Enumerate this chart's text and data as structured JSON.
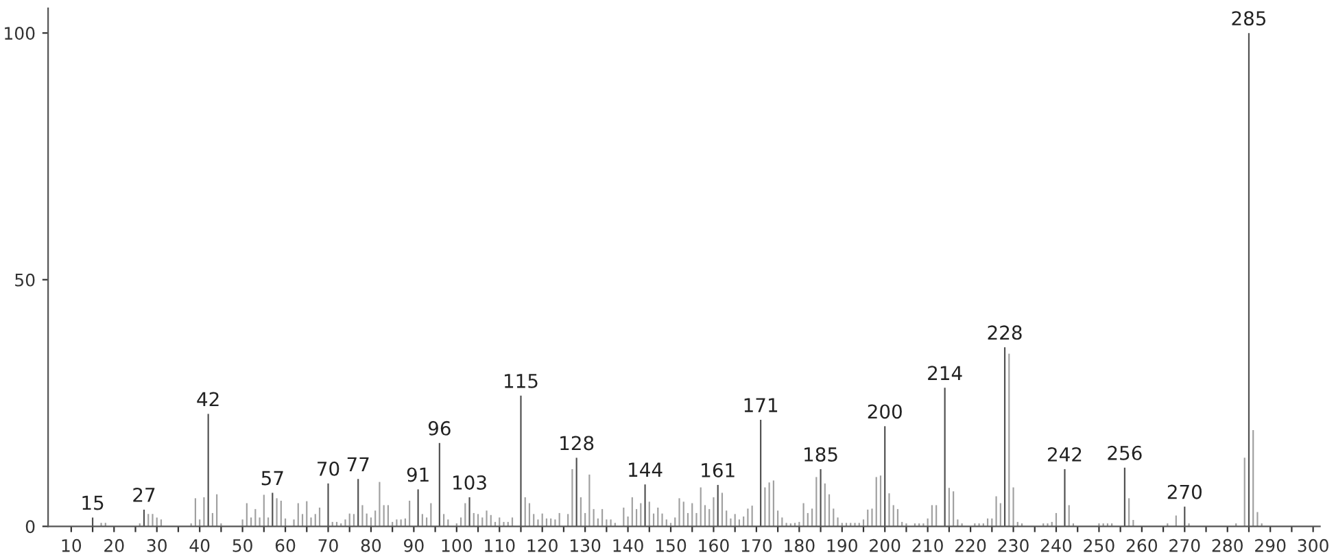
{
  "chart_data": {
    "type": "bar",
    "xlim": [
      4.6,
      301.6
    ],
    "ylim": [
      0,
      105
    ],
    "xticks": [
      10,
      {
        "value": 15,
        "label": null
      },
      20,
      {
        "value": 25,
        "label": null
      },
      30,
      {
        "value": 35,
        "label": null
      },
      40,
      {
        "value": 45,
        "label": null
      },
      50,
      {
        "value": 55,
        "label": null
      },
      60,
      {
        "value": 65,
        "label": null
      },
      70,
      {
        "value": 75,
        "label": null
      },
      80,
      {
        "value": 85,
        "label": null
      },
      90,
      {
        "value": 95,
        "label": null
      },
      100,
      {
        "value": 105,
        "label": null
      },
      110,
      {
        "value": 115,
        "label": null
      },
      120,
      {
        "value": 125,
        "label": null
      },
      130,
      {
        "value": 135,
        "label": null
      },
      140,
      {
        "value": 145,
        "label": null
      },
      150,
      {
        "value": 155,
        "label": null
      },
      160,
      {
        "value": 165,
        "label": null
      },
      170,
      {
        "value": 175,
        "label": null
      },
      180,
      {
        "value": 185,
        "label": null
      },
      190,
      {
        "value": 195,
        "label": null
      },
      200,
      {
        "value": 205,
        "label": null
      },
      210,
      {
        "value": 215,
        "label": null
      },
      220,
      {
        "value": 225,
        "label": null
      },
      230,
      {
        "value": 235,
        "label": null
      },
      240,
      {
        "value": 245,
        "label": null
      },
      250,
      {
        "value": 255,
        "label": null
      },
      260,
      {
        "value": 265,
        "label": null
      },
      270,
      {
        "value": 275,
        "label": null
      },
      280,
      {
        "value": 285,
        "label": null
      },
      290,
      {
        "value": 295,
        "label": null
      },
      300
    ],
    "yticks": [
      0,
      50,
      100
    ],
    "grid": false,
    "series": [
      {
        "color": "#a0a0a0",
        "x": [
          17,
          18,
          26,
          28,
          29,
          30,
          31,
          38,
          39,
          40,
          41,
          43,
          44,
          45,
          50,
          51,
          52,
          53,
          54,
          55,
          56,
          58,
          59,
          60,
          62,
          63,
          64,
          65,
          66,
          67,
          68,
          71,
          72,
          73,
          74,
          75,
          76,
          78,
          79,
          80,
          81,
          82,
          83,
          84,
          85,
          86,
          87,
          88,
          89,
          92,
          93,
          94,
          97,
          98,
          100,
          101,
          102,
          104,
          105,
          106,
          107,
          108,
          109,
          110,
          111,
          112,
          113,
          116,
          117,
          118,
          119,
          120,
          121,
          122,
          123,
          124,
          126,
          127,
          129,
          130,
          131,
          132,
          133,
          134,
          135,
          136,
          137,
          139,
          140,
          141,
          142,
          143,
          145,
          146,
          147,
          148,
          149,
          150,
          151,
          152,
          153,
          154,
          155,
          156,
          157,
          158,
          159,
          160,
          162,
          163,
          164,
          165,
          166,
          167,
          168,
          169,
          172,
          173,
          174,
          175,
          176,
          177,
          178,
          179,
          180,
          181,
          182,
          183,
          184,
          186,
          187,
          188,
          189,
          190,
          191,
          192,
          193,
          194,
          195,
          196,
          197,
          198,
          199,
          201,
          202,
          203,
          204,
          205,
          207,
          208,
          209,
          210,
          211,
          212,
          215,
          216,
          217,
          218,
          221,
          222,
          223,
          224,
          225,
          226,
          227,
          229,
          230,
          231,
          232,
          237,
          238,
          239,
          240,
          243,
          244,
          250,
          251,
          252,
          253,
          257,
          258,
          266,
          268,
          271,
          282,
          284,
          286,
          287,
          288
        ],
        "values": [
          0.7,
          0.7,
          0.6,
          2.5,
          2.5,
          1.8,
          1.4,
          0.6,
          5.7,
          1.4,
          5.9,
          2.7,
          6.5,
          0.6,
          1.4,
          4.7,
          1.8,
          3.5,
          1.8,
          6.4,
          1.8,
          5.7,
          5.2,
          1.6,
          1.4,
          4.7,
          2.5,
          5.1,
          1.8,
          2.5,
          3.8,
          0.9,
          0.9,
          0.6,
          1.4,
          2.6,
          2.5,
          4.3,
          2.6,
          1.8,
          3.2,
          9,
          4.3,
          4.3,
          0.9,
          1.4,
          1.4,
          1.6,
          5.2,
          2.5,
          1.8,
          4.7,
          2.5,
          1.4,
          0.6,
          1.8,
          4.7,
          2.7,
          2.5,
          1.8,
          3.2,
          2.3,
          0.9,
          1.8,
          0.9,
          0.9,
          1.8,
          5.9,
          4.7,
          2.5,
          1.4,
          2.6,
          1.6,
          1.6,
          1.4,
          2.7,
          2.5,
          11.6,
          5.9,
          2.7,
          10.5,
          3.5,
          1.6,
          3.5,
          1.4,
          1.4,
          0.7,
          3.8,
          2,
          5.9,
          3.5,
          4.7,
          5,
          2.6,
          3.8,
          2.6,
          1.4,
          0.7,
          1.8,
          5.7,
          5,
          2.7,
          4.7,
          2.7,
          7.9,
          4.3,
          3.5,
          5.9,
          6.8,
          3.2,
          1.6,
          2.5,
          1.4,
          2,
          3.6,
          4.2,
          7.9,
          8.9,
          9.3,
          3.2,
          1.8,
          0.7,
          0.6,
          0.7,
          0.9,
          4.7,
          2.7,
          3.6,
          10,
          8.7,
          6.5,
          3.6,
          1.8,
          0.7,
          0.7,
          0.7,
          0.7,
          0.7,
          1.4,
          3.4,
          3.6,
          10,
          10.3,
          6.7,
          4.3,
          3.5,
          0.9,
          0.6,
          0.6,
          0.6,
          0.6,
          1.6,
          4.3,
          4.3,
          7.8,
          7.1,
          1.4,
          0.6,
          0.6,
          0.6,
          0.6,
          1.6,
          1.6,
          6.1,
          4.7,
          35,
          7.9,
          0.9,
          0.6,
          0.6,
          0.6,
          0.9,
          2.7,
          4.3,
          0.6,
          0.6,
          0.6,
          0.6,
          0.6,
          5.7,
          1.3,
          0.6,
          2.2,
          0.6,
          0.6,
          13.9,
          19.5,
          2.9,
          0.6
        ]
      },
      {
        "color": "#505050",
        "x": [
          15,
          27,
          42,
          57,
          70,
          77,
          91,
          96,
          103,
          115,
          128,
          144,
          161,
          171,
          185,
          200,
          214,
          228,
          242,
          256,
          270,
          285
        ],
        "values": [
          1.8,
          3.4,
          22.8,
          6.8,
          8.7,
          9.6,
          7.5,
          16.9,
          5.9,
          26.5,
          13.9,
          8.5,
          8.4,
          21.6,
          11.6,
          20.3,
          28.1,
          36.3,
          11.6,
          11.9,
          4.0,
          100
        ]
      }
    ],
    "annotations": [
      {
        "text": "15",
        "x": 15,
        "y": 1.8
      },
      {
        "text": "27",
        "x": 27,
        "y": 3.4
      },
      {
        "text": "42",
        "x": 42,
        "y": 22.8
      },
      {
        "text": "57",
        "x": 57,
        "y": 6.8
      },
      {
        "text": "70",
        "x": 70,
        "y": 8.7
      },
      {
        "text": "77",
        "x": 77,
        "y": 9.6
      },
      {
        "text": "91",
        "x": 91,
        "y": 7.5
      },
      {
        "text": "96",
        "x": 96,
        "y": 16.9
      },
      {
        "text": "103",
        "x": 103,
        "y": 5.9
      },
      {
        "text": "115",
        "x": 115,
        "y": 26.5
      },
      {
        "text": "128",
        "x": 128,
        "y": 13.9
      },
      {
        "text": "144",
        "x": 144,
        "y": 8.5
      },
      {
        "text": "161",
        "x": 161,
        "y": 8.4
      },
      {
        "text": "171",
        "x": 171,
        "y": 21.6
      },
      {
        "text": "185",
        "x": 185,
        "y": 11.6
      },
      {
        "text": "200",
        "x": 200,
        "y": 20.3
      },
      {
        "text": "214",
        "x": 214,
        "y": 28.1
      },
      {
        "text": "228",
        "x": 228,
        "y": 36.3
      },
      {
        "text": "242",
        "x": 242,
        "y": 11.6
      },
      {
        "text": "256",
        "x": 256,
        "y": 11.9
      },
      {
        "text": "270",
        "x": 270,
        "y": 4.0
      },
      {
        "text": "285",
        "x": 285,
        "y": 100
      }
    ]
  }
}
